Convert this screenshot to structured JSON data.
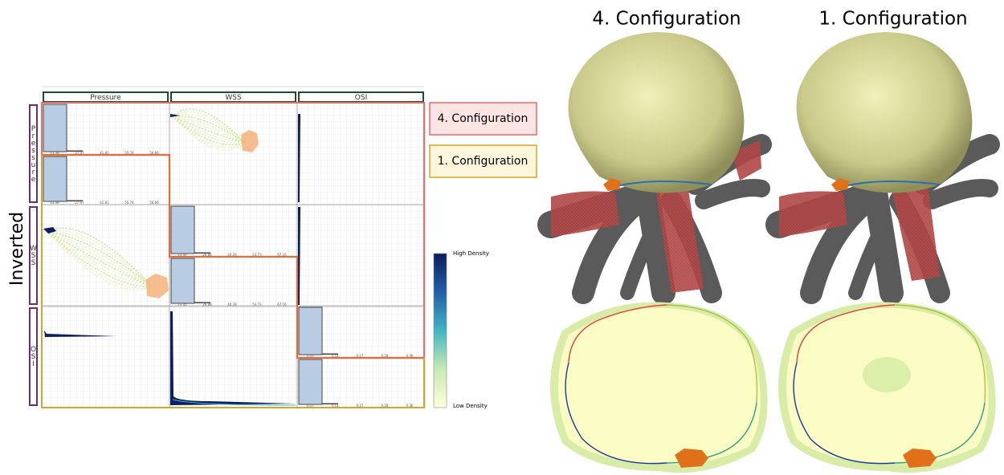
{
  "matrix": {
    "side_label": "Inverted",
    "columns": [
      "Pressure",
      "WSS",
      "OSI"
    ],
    "rows": [
      "Pressure",
      "WSS",
      "OSI"
    ],
    "histogram_ticks": [
      [
        "13.36",
        "27.07",
        "41.81",
        "55.74",
        "56.66"
      ],
      [
        "13.45",
        "26.88",
        "40.28",
        "53.73",
        "67.16"
      ],
      [
        "0.07",
        "0.14",
        "0.27",
        "0.28",
        "0.36"
      ]
    ]
  },
  "legend": [
    "4. Configuration",
    "1. Configuration"
  ],
  "colorbar": {
    "high": "High Density",
    "low": "Low Density"
  },
  "views": [
    "4. Configuration",
    "1. Configuration"
  ]
}
